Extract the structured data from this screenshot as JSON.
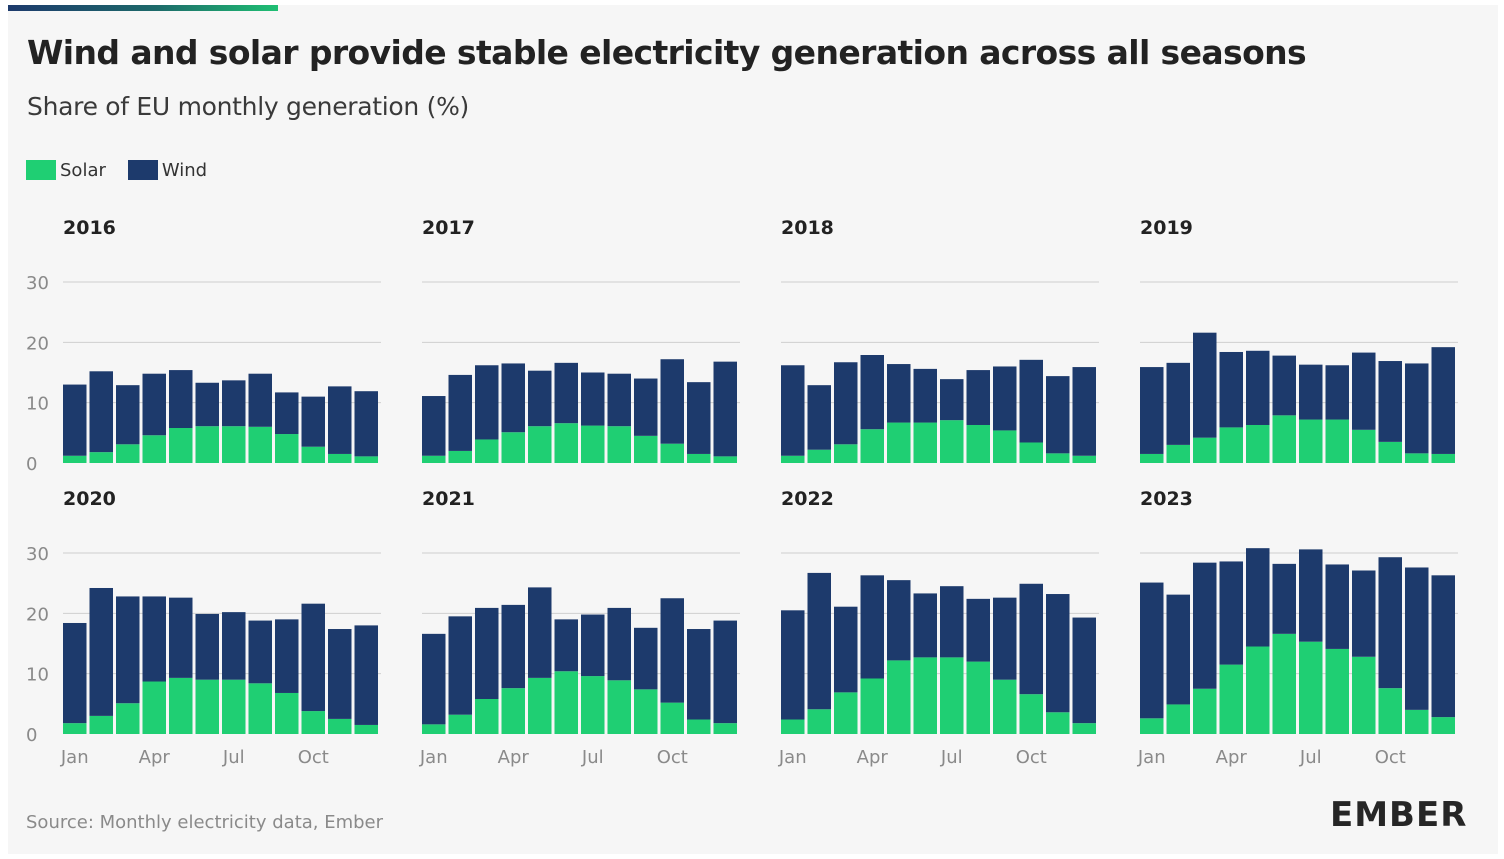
{
  "header": {
    "title": "Wind and solar provide stable electricity generation across all seasons",
    "subtitle": "Share of EU monthly generation (%)"
  },
  "legend": [
    {
      "label": "Solar",
      "color": "#1fcf73"
    },
    {
      "label": "Wind",
      "color": "#1d3a6c"
    }
  ],
  "footer": {
    "source": "Source: Monthly electricity data, Ember",
    "brand": "EMBER"
  },
  "chart_data": [
    {
      "type": "bar",
      "stacked": true,
      "title": "2016",
      "categories": [
        "Jan",
        "Feb",
        "Mar",
        "Apr",
        "May",
        "Jun",
        "Jul",
        "Aug",
        "Sep",
        "Oct",
        "Nov",
        "Dec"
      ],
      "x_tick_labels": [],
      "ylim": [
        0,
        30
      ],
      "yticks": [
        "0",
        "10",
        "20",
        "30"
      ],
      "grid": true,
      "series": [
        {
          "name": "Solar",
          "values": [
            1.2,
            1.8,
            3.1,
            4.6,
            5.8,
            6.1,
            6.1,
            6.0,
            4.8,
            2.7,
            1.5,
            1.1
          ]
        },
        {
          "name": "Wind",
          "values": [
            11.8,
            13.4,
            9.8,
            10.2,
            9.6,
            7.2,
            7.6,
            8.8,
            6.9,
            8.3,
            11.2,
            10.8
          ]
        }
      ]
    },
    {
      "type": "bar",
      "stacked": true,
      "title": "2017",
      "categories": [
        "Jan",
        "Feb",
        "Mar",
        "Apr",
        "May",
        "Jun",
        "Jul",
        "Aug",
        "Sep",
        "Oct",
        "Nov",
        "Dec"
      ],
      "x_tick_labels": [],
      "ylim": [
        0,
        30
      ],
      "yticks": [],
      "grid": true,
      "series": [
        {
          "name": "Solar",
          "values": [
            1.2,
            2.0,
            3.9,
            5.1,
            6.1,
            6.6,
            6.2,
            6.1,
            4.5,
            3.2,
            1.5,
            1.1
          ]
        },
        {
          "name": "Wind",
          "values": [
            9.9,
            12.6,
            12.3,
            11.4,
            9.2,
            10.0,
            8.8,
            8.7,
            9.5,
            14.0,
            11.9,
            15.7
          ]
        }
      ]
    },
    {
      "type": "bar",
      "stacked": true,
      "title": "2018",
      "categories": [
        "Jan",
        "Feb",
        "Mar",
        "Apr",
        "May",
        "Jun",
        "Jul",
        "Aug",
        "Sep",
        "Oct",
        "Nov",
        "Dec"
      ],
      "x_tick_labels": [],
      "ylim": [
        0,
        30
      ],
      "yticks": [],
      "grid": true,
      "series": [
        {
          "name": "Solar",
          "values": [
            1.2,
            2.2,
            3.1,
            5.6,
            6.7,
            6.7,
            7.1,
            6.3,
            5.4,
            3.4,
            1.6,
            1.2
          ]
        },
        {
          "name": "Wind",
          "values": [
            15.0,
            10.7,
            13.6,
            12.3,
            9.7,
            8.9,
            6.8,
            9.1,
            10.6,
            13.7,
            12.8,
            14.7
          ]
        }
      ]
    },
    {
      "type": "bar",
      "stacked": true,
      "title": "2019",
      "categories": [
        "Jan",
        "Feb",
        "Mar",
        "Apr",
        "May",
        "Jun",
        "Jul",
        "Aug",
        "Sep",
        "Oct",
        "Nov",
        "Dec"
      ],
      "x_tick_labels": [],
      "ylim": [
        0,
        30
      ],
      "yticks": [],
      "grid": true,
      "series": [
        {
          "name": "Solar",
          "values": [
            1.5,
            3.0,
            4.2,
            5.9,
            6.3,
            7.9,
            7.2,
            7.2,
            5.5,
            3.5,
            1.6,
            1.5
          ]
        },
        {
          "name": "Wind",
          "values": [
            14.4,
            13.6,
            17.4,
            12.5,
            12.3,
            9.9,
            9.1,
            9.0,
            12.8,
            13.4,
            14.9,
            17.7
          ]
        }
      ]
    },
    {
      "type": "bar",
      "stacked": true,
      "title": "2020",
      "categories": [
        "Jan",
        "Feb",
        "Mar",
        "Apr",
        "May",
        "Jun",
        "Jul",
        "Aug",
        "Sep",
        "Oct",
        "Nov",
        "Dec"
      ],
      "x_tick_labels": [
        "Jan",
        "Apr",
        "Jul",
        "Oct"
      ],
      "ylim": [
        0,
        30
      ],
      "yticks": [
        "0",
        "10",
        "20",
        "30"
      ],
      "grid": true,
      "series": [
        {
          "name": "Solar",
          "values": [
            1.8,
            3.0,
            5.1,
            8.7,
            9.3,
            9.0,
            9.0,
            8.4,
            6.8,
            3.8,
            2.5,
            1.5
          ]
        },
        {
          "name": "Wind",
          "values": [
            16.6,
            21.2,
            17.7,
            14.1,
            13.3,
            10.9,
            11.2,
            10.4,
            12.2,
            17.8,
            14.9,
            16.5
          ]
        }
      ]
    },
    {
      "type": "bar",
      "stacked": true,
      "title": "2021",
      "categories": [
        "Jan",
        "Feb",
        "Mar",
        "Apr",
        "May",
        "Jun",
        "Jul",
        "Aug",
        "Sep",
        "Oct",
        "Nov",
        "Dec"
      ],
      "x_tick_labels": [
        "Jan",
        "Apr",
        "Jul",
        "Oct"
      ],
      "ylim": [
        0,
        30
      ],
      "yticks": [],
      "grid": true,
      "series": [
        {
          "name": "Solar",
          "values": [
            1.6,
            3.2,
            5.8,
            7.6,
            9.3,
            10.4,
            9.6,
            8.9,
            7.4,
            5.2,
            2.4,
            1.8
          ]
        },
        {
          "name": "Wind",
          "values": [
            15.0,
            16.3,
            15.1,
            13.8,
            15.0,
            8.6,
            10.2,
            12.0,
            10.2,
            17.3,
            15.0,
            17.0
          ]
        }
      ]
    },
    {
      "type": "bar",
      "stacked": true,
      "title": "2022",
      "categories": [
        "Jan",
        "Feb",
        "Mar",
        "Apr",
        "May",
        "Jun",
        "Jul",
        "Aug",
        "Sep",
        "Oct",
        "Nov",
        "Dec"
      ],
      "x_tick_labels": [
        "Jan",
        "Apr",
        "Jul",
        "Oct"
      ],
      "ylim": [
        0,
        30
      ],
      "yticks": [],
      "grid": true,
      "series": [
        {
          "name": "Solar",
          "values": [
            2.4,
            4.1,
            6.9,
            9.2,
            12.2,
            12.7,
            12.7,
            12.0,
            9.0,
            6.6,
            3.6,
            1.8
          ]
        },
        {
          "name": "Wind",
          "values": [
            18.1,
            22.6,
            14.2,
            17.1,
            13.3,
            10.6,
            11.8,
            10.4,
            13.6,
            18.3,
            19.6,
            17.5
          ]
        }
      ]
    },
    {
      "type": "bar",
      "stacked": true,
      "title": "2023",
      "categories": [
        "Jan",
        "Feb",
        "Mar",
        "Apr",
        "May",
        "Jun",
        "Jul",
        "Aug",
        "Sep",
        "Oct",
        "Nov",
        "Dec"
      ],
      "x_tick_labels": [
        "Jan",
        "Apr",
        "Jul",
        "Oct"
      ],
      "ylim": [
        0,
        30
      ],
      "yticks": [],
      "grid": true,
      "series": [
        {
          "name": "Solar",
          "values": [
            2.6,
            4.9,
            7.5,
            11.5,
            14.5,
            16.6,
            15.3,
            14.1,
            12.8,
            7.6,
            4.0,
            2.8
          ]
        },
        {
          "name": "Wind",
          "values": [
            22.5,
            18.2,
            20.9,
            17.1,
            16.3,
            11.6,
            15.3,
            14.0,
            14.3,
            21.7,
            23.6,
            23.5
          ]
        }
      ]
    }
  ]
}
